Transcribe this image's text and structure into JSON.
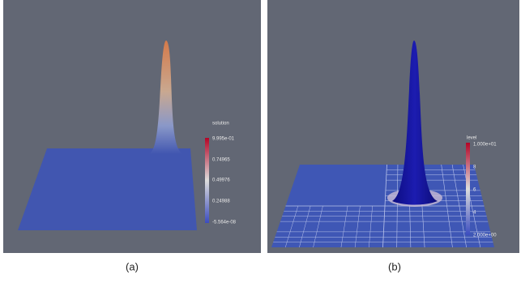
{
  "panels": [
    {
      "colorbar": {
        "title": "solution",
        "labels": [
          "9.995e-01",
          "0.74965",
          "0.49976",
          "0.24988",
          "-5.564e-08"
        ]
      },
      "caption": "(a)"
    },
    {
      "colorbar": {
        "title": "level",
        "labels": [
          "1.000e+01",
          "8",
          "6",
          "4",
          "2.000e+00"
        ]
      },
      "caption": "(b)"
    }
  ]
}
